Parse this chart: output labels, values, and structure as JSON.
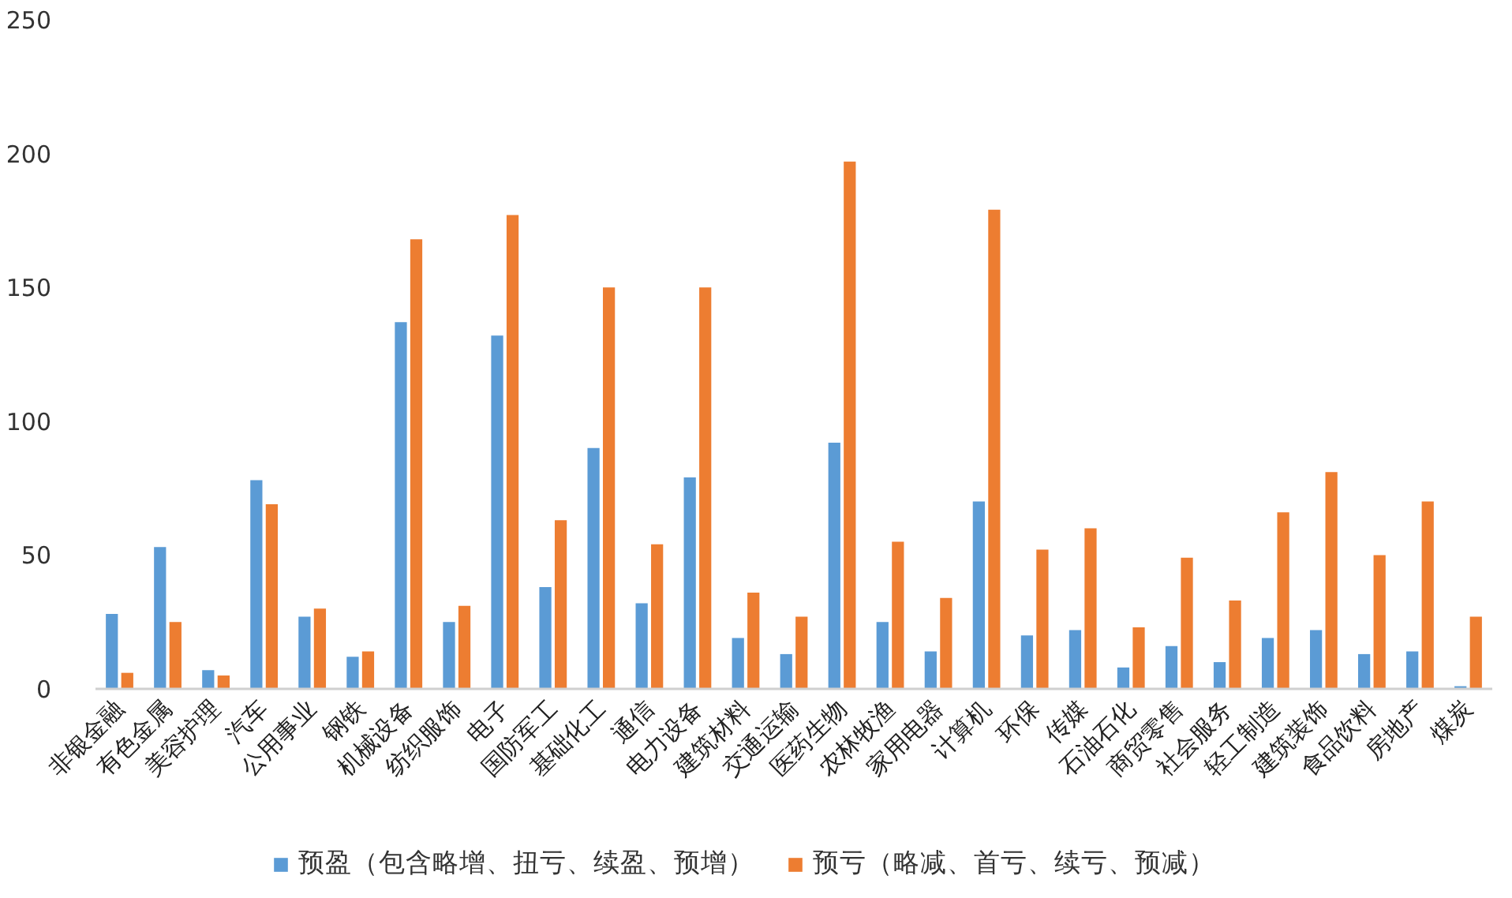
{
  "chart_data": {
    "type": "bar",
    "categories": [
      "非银金融",
      "有色金属",
      "美容护理",
      "汽车",
      "公用事业",
      "钢铁",
      "机械设备",
      "纺织服饰",
      "电子",
      "国防军工",
      "基础化工",
      "通信",
      "电力设备",
      "建筑材料",
      "交通运输",
      "医药生物",
      "农林牧渔",
      "家用电器",
      "计算机",
      "环保",
      "传媒",
      "石油石化",
      "商贸零售",
      "社会服务",
      "轻工制造",
      "建筑装饰",
      "食品饮料",
      "房地产",
      "煤炭"
    ],
    "series": [
      {
        "name": "预盈（包含略增、扭亏、续盈、预增）",
        "color": "#5b9bd5",
        "values": [
          28,
          53,
          7,
          78,
          27,
          12,
          137,
          25,
          132,
          38,
          90,
          32,
          79,
          19,
          13,
          92,
          25,
          14,
          70,
          20,
          22,
          8,
          16,
          10,
          19,
          22,
          13,
          14,
          1
        ]
      },
      {
        "name": "预亏（略减、首亏、续亏、预减）",
        "color": "#ed7d31",
        "values": [
          6,
          25,
          5,
          69,
          30,
          14,
          168,
          31,
          177,
          63,
          150,
          54,
          150,
          36,
          27,
          197,
          55,
          34,
          179,
          52,
          60,
          23,
          49,
          33,
          66,
          81,
          50,
          70,
          27
        ]
      }
    ],
    "ylim": [
      0,
      250
    ],
    "yticks": [
      0,
      50,
      100,
      150,
      200,
      250
    ],
    "grid": false,
    "legend": "bottom"
  }
}
